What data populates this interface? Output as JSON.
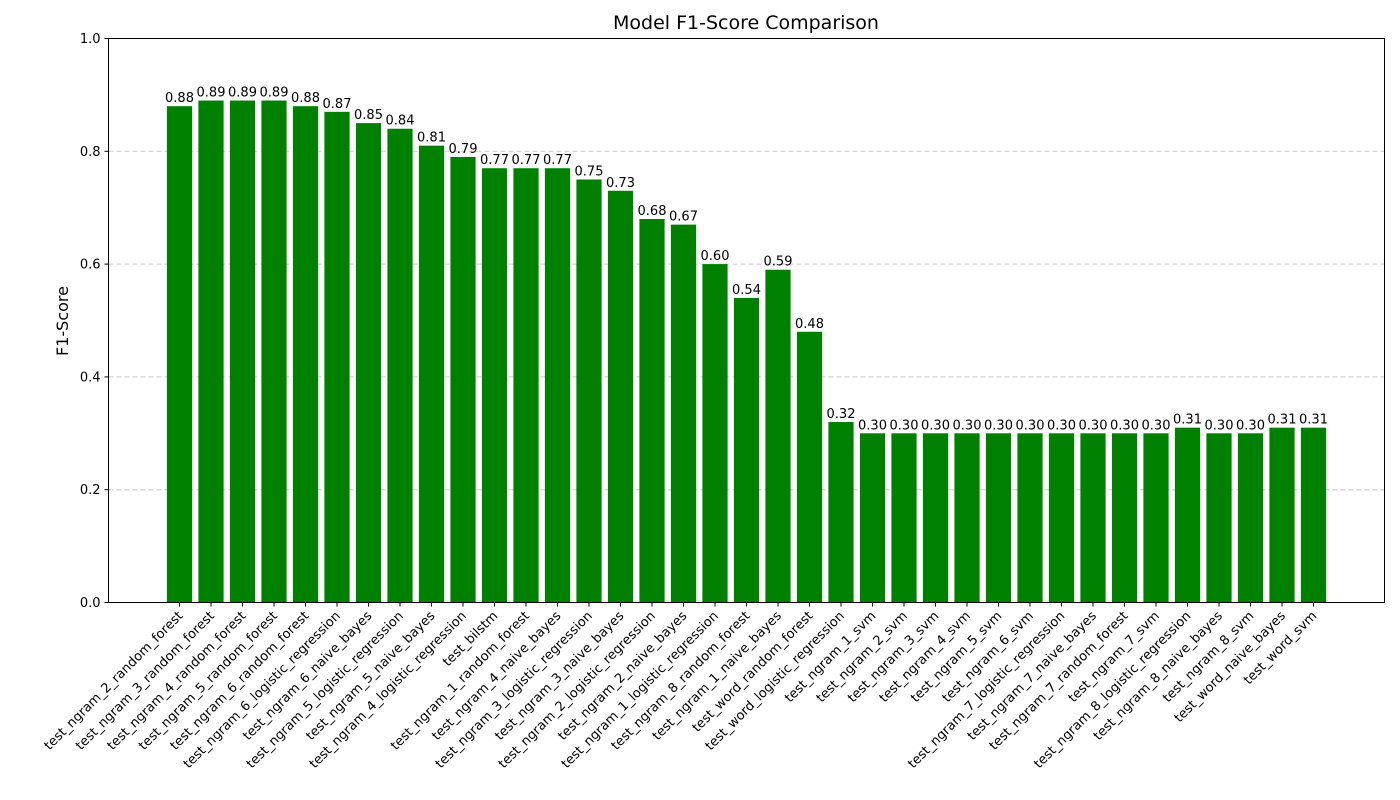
{
  "chart_data": {
    "type": "bar",
    "title": "Model F1-Score Comparison",
    "xlabel": "",
    "ylabel": "F1-Score",
    "ylim": [
      0,
      1
    ],
    "yticks": [
      "0.0",
      "0.2",
      "0.4",
      "0.6",
      "0.8",
      "1.0"
    ],
    "grid": "horizontal dashed",
    "bar_color": "#008000",
    "categories": [
      "test_ngram_2_random_forest",
      "test_ngram_3_random_forest",
      "test_ngram_4_random_forest",
      "test_ngram_5_random_forest",
      "test_ngram_6_random_forest",
      "test_ngram_6_logistic_regression",
      "test_ngram_6_naive_bayes",
      "test_ngram_5_logistic_regression",
      "test_ngram_5_naive_bayes",
      "test_ngram_4_logistic_regression",
      "test_bilstm",
      "test_ngram_1_random_forest",
      "test_ngram_4_naive_bayes",
      "test_ngram_3_logistic_regression",
      "test_ngram_3_naive_bayes",
      "test_ngram_2_logistic_regression",
      "test_ngram_2_naive_bayes",
      "test_ngram_1_logistic_regression",
      "test_ngram_8_random_forest",
      "test_ngram_1_naive_bayes",
      "test_word_random_forest",
      "test_word_logistic_regression",
      "test_ngram_1_svm",
      "test_ngram_2_svm",
      "test_ngram_3_svm",
      "test_ngram_4_svm",
      "test_ngram_5_svm",
      "test_ngram_6_svm",
      "test_ngram_7_logistic_regression",
      "test_ngram_7_naive_bayes",
      "test_ngram_7_random_forest",
      "test_ngram_7_svm",
      "test_ngram_8_logistic_regression",
      "test_ngram_8_naive_bayes",
      "test_ngram_8_svm",
      "test_word_naive_bayes",
      "test_word_svm"
    ],
    "values": [
      0.88,
      0.89,
      0.89,
      0.89,
      0.88,
      0.87,
      0.85,
      0.84,
      0.81,
      0.79,
      0.77,
      0.77,
      0.77,
      0.75,
      0.73,
      0.68,
      0.67,
      0.6,
      0.54,
      0.59,
      0.48,
      0.32,
      0.3,
      0.3,
      0.3,
      0.3,
      0.3,
      0.3,
      0.3,
      0.3,
      0.3,
      0.3,
      0.31,
      0.3,
      0.3,
      0.31,
      0.31
    ],
    "labels": [
      "0.88",
      "0.89",
      "0.89",
      "0.89",
      "0.88",
      "0.87",
      "0.85",
      "0.84",
      "0.81",
      "0.79",
      "0.77",
      "0.77",
      "0.77",
      "0.75",
      "0.73",
      "0.68",
      "0.67",
      "0.60",
      "0.54",
      "0.59",
      "0.48",
      "0.32",
      "0.30",
      "0.30",
      "0.30",
      "0.30",
      "0.30",
      "0.30",
      "0.30",
      "0.30",
      "0.30",
      "0.30",
      "0.31",
      "0.30",
      "0.30",
      "0.31",
      "0.31"
    ]
  }
}
